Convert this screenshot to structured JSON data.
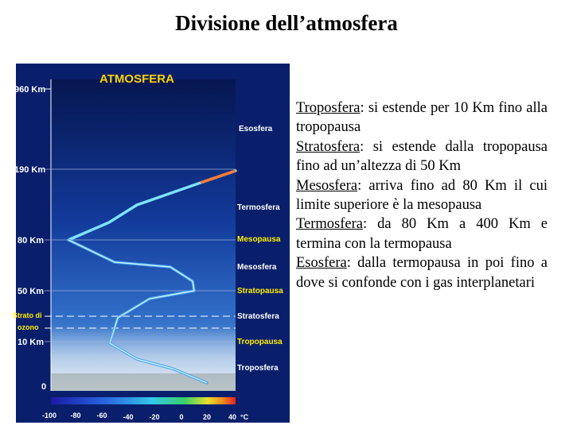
{
  "title": "Divisione dell’atmosfera",
  "figure": {
    "heading": "ATMOSFERA",
    "altitudes": [
      {
        "label": "960 Km"
      },
      {
        "label": "190 Km"
      },
      {
        "label": "80 Km"
      },
      {
        "label": "50 Km"
      },
      {
        "label": "10 Km"
      },
      {
        "label": "0"
      }
    ],
    "ozone_label_1": "Strato di",
    "ozone_label_2": "ozono",
    "layers": [
      "Esosfera",
      "Termosfera",
      "Mesopausa",
      "Mesosfera",
      "Stratopausa",
      "Stratosfera",
      "Tropopausa",
      "Troposfera"
    ],
    "temperature_ticks": [
      "-100",
      "-80",
      "-60",
      "-40",
      "-20",
      "0",
      "20",
      "40"
    ],
    "temperature_unit": "°C",
    "colors": {
      "background": "#0a1f6b",
      "pause_labels": "#ffee00",
      "heading": "#ffd200"
    }
  },
  "bullets": [
    {
      "term": "Troposfera",
      "text": ": si estende per 10 Km fino alla tropopausa"
    },
    {
      "term": "Stratosfera",
      "text": ": si estende dalla tropopausa fino ad un’altezza di 50 Km"
    },
    {
      "term": "Mesosfera",
      "text": ": arriva fino ad 80 Km il cui limite superiore è la mesopausa"
    },
    {
      "term": "Termosfera",
      "text": ": da 80 Km a 400 Km e termina con la termopausa"
    },
    {
      "term": "Esosfera",
      "text": ": dalla termopausa in poi fino a dove si confonde con i gas interplanetari"
    }
  ]
}
